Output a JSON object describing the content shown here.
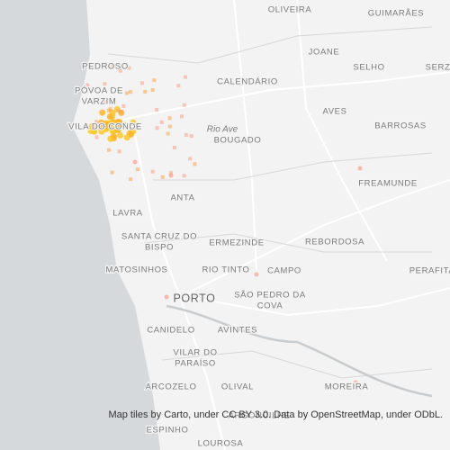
{
  "map": {
    "places": [
      [
        "OLIVEIRA"
      ],
      [
        "JOANE"
      ],
      [
        "GUIMARÃES"
      ],
      [
        "PEDROSO"
      ],
      [
        "SELHO"
      ],
      [
        "SERZE"
      ],
      [
        "PÓVOA DE",
        "VARZIM"
      ],
      [
        "CALENDÁRIO"
      ],
      [
        "AVES"
      ],
      [
        "VILA DO CONDE"
      ],
      [
        "BARROSAS"
      ],
      [
        "Rio Ave"
      ],
      [
        "BOUGADO"
      ],
      [
        "FREAMUNDE"
      ],
      [
        "ANTA"
      ],
      [
        "LAVRA"
      ],
      [
        "SANTA CRUZ DO",
        "BISPO"
      ],
      [
        "ERMEZINDE"
      ],
      [
        "REBORDOSA"
      ],
      [
        "MATOSINHOS"
      ],
      [
        "RIO TINTO"
      ],
      [
        "CAMPO"
      ],
      [
        "PERAFITA"
      ],
      [
        "PORTO"
      ],
      [
        "SÃO PEDRO DA",
        "COVA"
      ],
      [
        "CANIDELO"
      ],
      [
        "AVINTES"
      ],
      [
        "VILAR DO",
        "PARAÍSO"
      ],
      [
        "ARCOZELO"
      ],
      [
        "OLIVAL"
      ],
      [
        "MOREIRA"
      ],
      [
        "ARGONCILHE"
      ],
      [
        "ESPINHO"
      ],
      [
        "LOUROSA"
      ]
    ],
    "attribution": "Map tiles by Carto, under CC BY 3.0. Data by OpenStreetMap, under ODbL."
  }
}
